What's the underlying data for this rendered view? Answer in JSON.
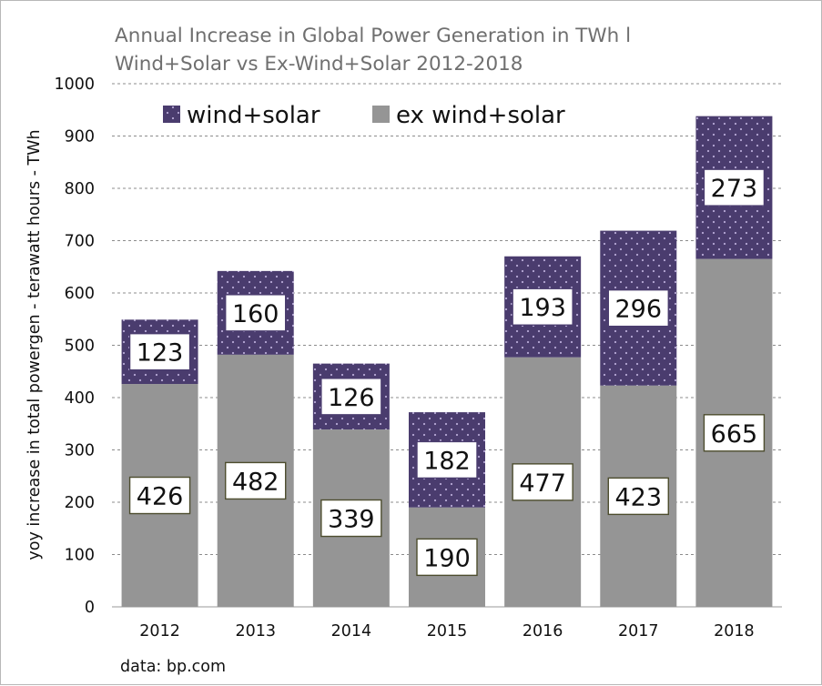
{
  "chart_data": {
    "type": "bar",
    "stacked": true,
    "title_lines": [
      "Annual Increase in Global Power Generation in TWh l",
      "Wind+Solar vs Ex-Wind+Solar 2012-2018"
    ],
    "ylabel": "yoy increase in total powergen - terawatt hours  - TWh",
    "xlabel": "",
    "ylim": [
      0,
      1000
    ],
    "yticks": [
      0,
      100,
      200,
      300,
      400,
      500,
      600,
      700,
      800,
      900,
      1000
    ],
    "grid": true,
    "legend_position": "top-left",
    "categories": [
      "2012",
      "2013",
      "2014",
      "2015",
      "2016",
      "2017",
      "2018"
    ],
    "series": [
      {
        "name": "ex wind+solar",
        "color": "#959595",
        "values": [
          426,
          482,
          339,
          190,
          477,
          423,
          665
        ]
      },
      {
        "name": "wind+solar",
        "color": "#4a3c6e",
        "values": [
          123,
          160,
          126,
          182,
          193,
          296,
          273
        ]
      }
    ],
    "source": "data: bp.com"
  }
}
